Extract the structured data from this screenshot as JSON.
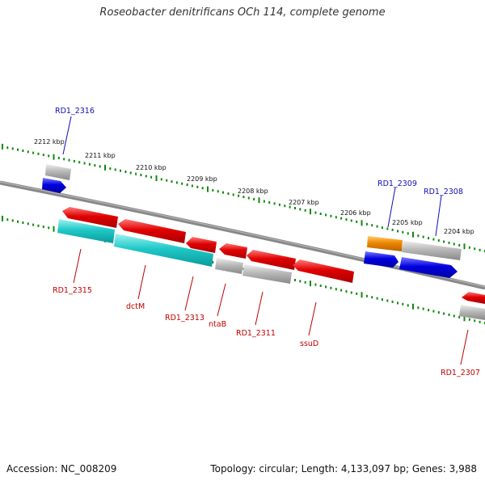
{
  "title": "Roseobacter denitrificans OCh 114, complete genome",
  "accession": "Accession: NC_008209",
  "summary": "Topology: circular; Length: 4,133,097 bp; Genes: 3,988",
  "ruler_labels": [
    "2212 kbp",
    "2211 kbp",
    "2210 kbp",
    "2209 kbp",
    "2208 kbp",
    "2207 kbp",
    "2206 kbp",
    "2205 kbp",
    "2204 kbp"
  ],
  "gene_labels_upper": [
    "RD1_2316",
    "RD1_2309",
    "RD1_2308"
  ],
  "gene_labels_lower": [
    "RD1_2315",
    "dctM",
    "RD1_2313",
    "ntaB",
    "RD1_2311",
    "ssuD",
    "RD1_2307"
  ],
  "colors": {
    "red": "#e00000",
    "cyan": "#20c8c8",
    "grey": "#b4b4b4",
    "blue": "#0000e0",
    "orange": "#ee8800",
    "tick_green": "#118811",
    "upper_label": "#1010b0",
    "lower_label": "#c00000"
  }
}
